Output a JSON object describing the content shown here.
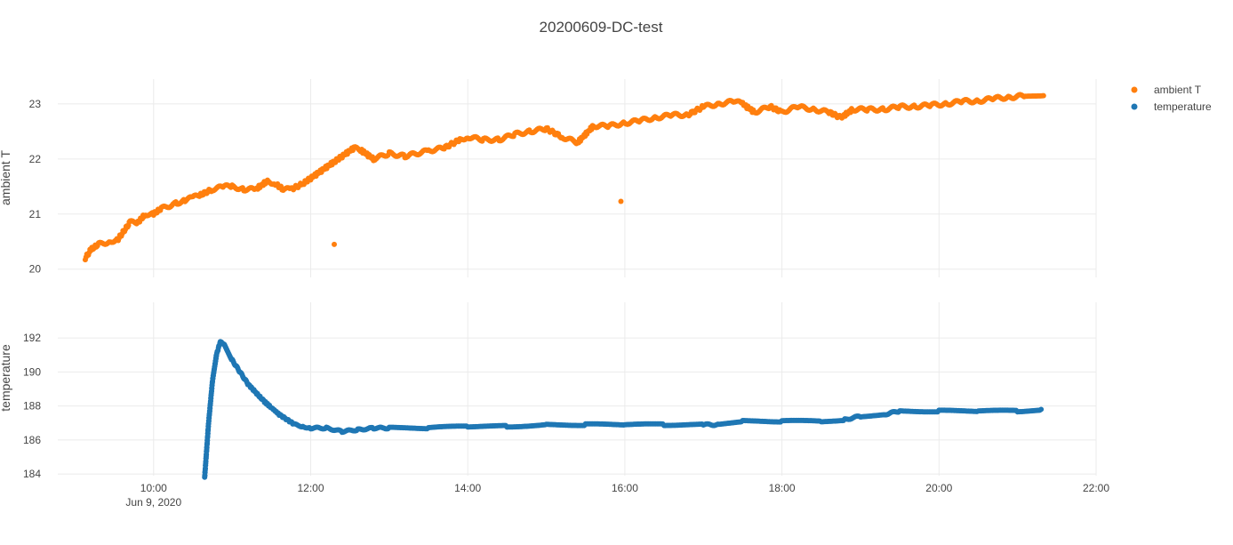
{
  "chart_data": {
    "type": "scatter",
    "title": "20200609-DC-test",
    "x_ticks": [
      "10:00",
      "12:00",
      "14:00",
      "16:00",
      "18:00",
      "20:00",
      "22:00"
    ],
    "x_tick_sub": "Jun 9, 2020",
    "x_unit": "hours (time of day, Jun 9, 2020)",
    "xlim": [
      8.78,
      22.0
    ],
    "legend_position": "top-right",
    "grid": true,
    "subplots": [
      {
        "ylabel": "ambient T",
        "ylim": [
          19.85,
          23.45
        ],
        "yticks": [
          20,
          21,
          22,
          23
        ]
      },
      {
        "ylabel": "temperature",
        "ylim": [
          183.9,
          194.1
        ],
        "yticks": [
          184,
          186,
          188,
          190,
          192
        ]
      }
    ],
    "series": [
      {
        "name": "ambient T",
        "color": "#ff7f0e",
        "subplot": 0,
        "x": [
          9.13,
          9.2,
          9.3,
          9.45,
          9.55,
          9.7,
          9.8,
          9.9,
          10.0,
          10.1,
          10.3,
          10.4,
          10.5,
          10.6,
          10.75,
          10.9,
          11.0,
          11.15,
          11.3,
          11.45,
          11.55,
          11.65,
          11.75,
          11.9,
          12.0,
          12.15,
          12.3,
          12.4,
          12.55,
          12.65,
          12.8,
          13.0,
          13.2,
          13.5,
          13.7,
          13.9,
          14.0,
          14.2,
          14.4,
          14.6,
          14.8,
          15.0,
          15.2,
          15.4,
          15.6,
          15.8,
          16.0,
          16.2,
          16.4,
          16.6,
          16.8,
          17.0,
          17.2,
          17.4,
          17.5,
          17.65,
          17.85,
          18.0,
          18.2,
          18.4,
          18.6,
          18.75,
          18.9,
          19.1,
          19.3,
          19.5,
          19.7,
          19.9,
          20.1,
          20.3,
          20.5,
          20.7,
          20.9,
          21.1,
          21.33
        ],
        "y": [
          20.2,
          20.35,
          20.45,
          20.5,
          20.55,
          20.85,
          20.85,
          21.0,
          21.0,
          21.1,
          21.2,
          21.25,
          21.3,
          21.35,
          21.45,
          21.5,
          21.5,
          21.45,
          21.45,
          21.6,
          21.55,
          21.45,
          21.45,
          21.55,
          21.65,
          21.8,
          21.95,
          22.05,
          22.2,
          22.15,
          22.0,
          22.1,
          22.05,
          22.15,
          22.2,
          22.35,
          22.4,
          22.35,
          22.35,
          22.45,
          22.5,
          22.55,
          22.4,
          22.3,
          22.6,
          22.6,
          22.65,
          22.7,
          22.75,
          22.8,
          22.8,
          22.95,
          23.0,
          23.05,
          23.0,
          22.85,
          22.95,
          22.85,
          22.95,
          22.9,
          22.85,
          22.75,
          22.9,
          22.9,
          22.9,
          22.95,
          22.95,
          22.98,
          23.0,
          23.05,
          23.05,
          23.1,
          23.12,
          23.15,
          23.15
        ]
      },
      {
        "name": "temperature",
        "color": "#1f77b4",
        "subplot": 1,
        "x": [
          10.65,
          10.7,
          10.75,
          10.8,
          10.85,
          10.9,
          11.0,
          11.1,
          11.2,
          11.3,
          11.4,
          11.5,
          11.6,
          11.7,
          11.8,
          11.9,
          12.0,
          12.2,
          12.4,
          12.6,
          12.8,
          13.0,
          13.5,
          14.0,
          14.5,
          15.0,
          15.5,
          16.0,
          16.5,
          17.0,
          17.2,
          17.5,
          18.0,
          18.5,
          18.8,
          19.0,
          19.3,
          19.5,
          20.0,
          20.5,
          21.0,
          21.3
        ],
        "y": [
          183.8,
          187.0,
          189.5,
          191.0,
          191.8,
          191.6,
          190.7,
          190.0,
          189.3,
          188.8,
          188.3,
          187.9,
          187.5,
          187.2,
          186.9,
          186.8,
          186.7,
          186.7,
          186.5,
          186.6,
          186.7,
          186.7,
          186.7,
          186.8,
          186.8,
          186.9,
          186.9,
          186.9,
          186.9,
          186.9,
          186.9,
          187.1,
          187.1,
          187.1,
          187.2,
          187.4,
          187.5,
          187.7,
          187.7,
          187.7,
          187.7,
          187.8
        ]
      }
    ],
    "outliers": [
      {
        "series": "ambient T",
        "x": 12.3,
        "y": 20.45
      },
      {
        "series": "ambient T",
        "x": 15.95,
        "y": 21.23
      }
    ]
  }
}
